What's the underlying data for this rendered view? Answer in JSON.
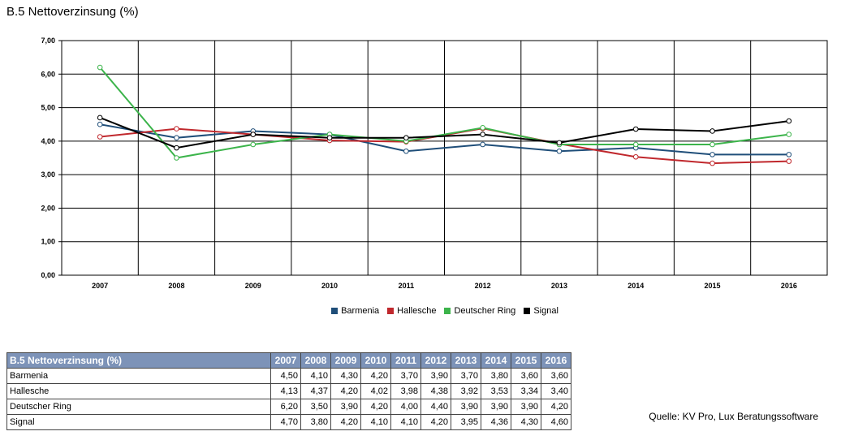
{
  "page_title": "B.5 Nettoverzinsung (%)",
  "source": "Quelle: KV Pro, Lux Beratungssoftware",
  "chart_data": {
    "type": "line",
    "title": "B.5 Nettoverzinsung (%)",
    "x": [
      "2007",
      "2008",
      "2009",
      "2010",
      "2011",
      "2012",
      "2013",
      "2014",
      "2015",
      "2016"
    ],
    "y_ticks": [
      "0,00",
      "1,00",
      "2,00",
      "3,00",
      "4,00",
      "5,00",
      "6,00",
      "7,00"
    ],
    "ylim": [
      0,
      7
    ],
    "grid": true,
    "legend_position": "bottom",
    "series": [
      {
        "name": "Barmenia",
        "color": "#1f4e79",
        "values": [
          4.5,
          4.1,
          4.3,
          4.2,
          3.7,
          3.9,
          3.7,
          3.8,
          3.6,
          3.6
        ]
      },
      {
        "name": "Hallesche",
        "color": "#c0282d",
        "values": [
          4.13,
          4.37,
          4.2,
          4.02,
          3.98,
          4.38,
          3.92,
          3.53,
          3.34,
          3.4
        ]
      },
      {
        "name": "Deutscher Ring",
        "color": "#3cb44b",
        "values": [
          6.2,
          3.5,
          3.9,
          4.2,
          4.0,
          4.4,
          3.9,
          3.9,
          3.9,
          4.2
        ]
      },
      {
        "name": "Signal",
        "color": "#000000",
        "values": [
          4.7,
          3.8,
          4.2,
          4.1,
          4.1,
          4.2,
          3.95,
          4.36,
          4.3,
          4.6
        ]
      }
    ]
  },
  "table": {
    "header": "B.5 Nettoverzinsung (%)",
    "years": [
      "2007",
      "2008",
      "2009",
      "2010",
      "2011",
      "2012",
      "2013",
      "2014",
      "2015",
      "2016"
    ],
    "rows": [
      {
        "name": "Barmenia",
        "values": [
          "4,50",
          "4,10",
          "4,30",
          "4,20",
          "3,70",
          "3,90",
          "3,70",
          "3,80",
          "3,60",
          "3,60"
        ]
      },
      {
        "name": "Hallesche",
        "values": [
          "4,13",
          "4,37",
          "4,20",
          "4,02",
          "3,98",
          "4,38",
          "3,92",
          "3,53",
          "3,34",
          "3,40"
        ]
      },
      {
        "name": "Deutscher Ring",
        "values": [
          "6,20",
          "3,50",
          "3,90",
          "4,20",
          "4,00",
          "4,40",
          "3,90",
          "3,90",
          "3,90",
          "4,20"
        ]
      },
      {
        "name": "Signal",
        "values": [
          "4,70",
          "3,80",
          "4,20",
          "4,10",
          "4,10",
          "4,20",
          "3,95",
          "4,36",
          "4,30",
          "4,60"
        ]
      }
    ]
  }
}
